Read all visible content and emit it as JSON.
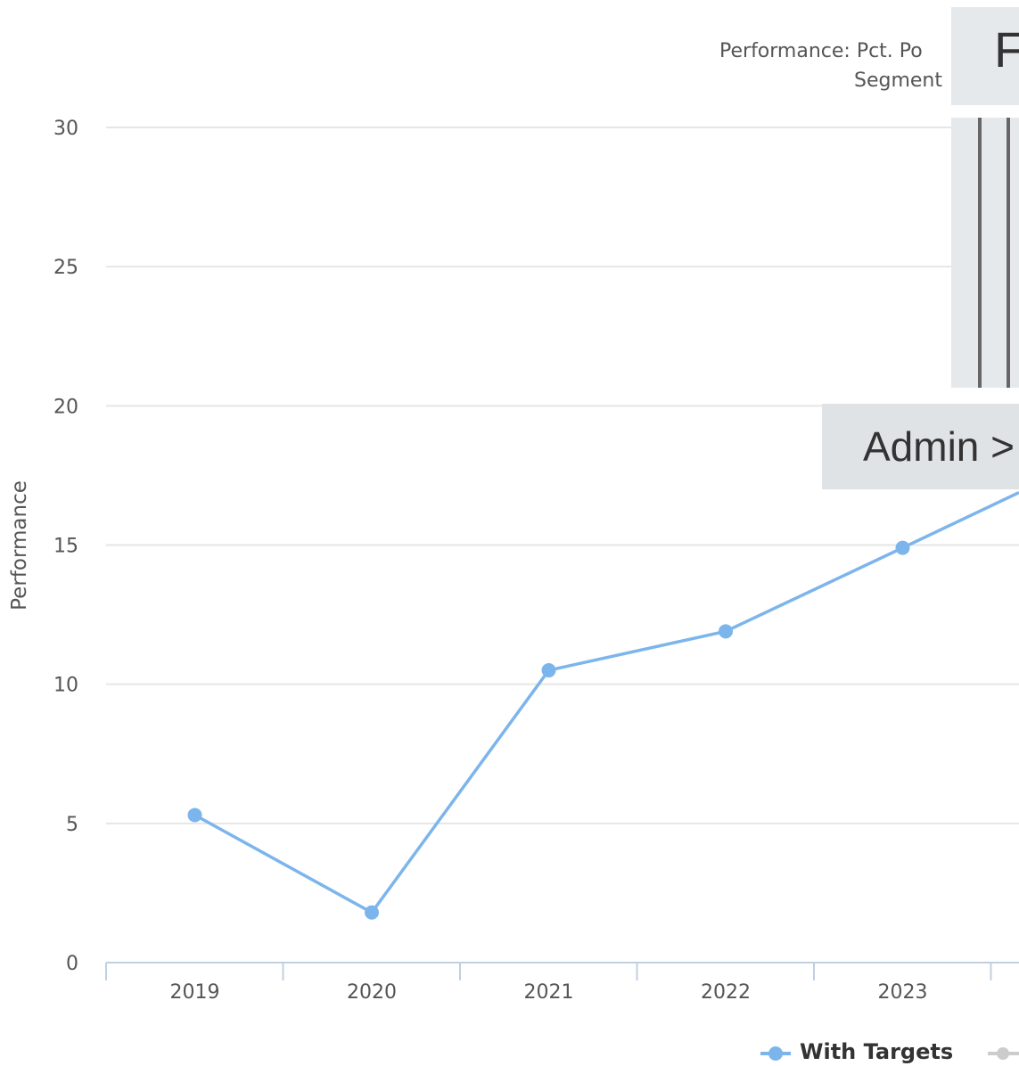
{
  "chart_data": {
    "type": "line",
    "title_lines": [
      "Performance: Pct. Po",
      "Segment"
    ],
    "ylabel": "Performance",
    "xlabel": "",
    "categories": [
      "2019",
      "2020",
      "2021",
      "2022",
      "2023"
    ],
    "ylim": [
      0,
      30
    ],
    "yticks": [
      0,
      5,
      10,
      15,
      20,
      25,
      30
    ],
    "series": [
      {
        "name": "With Targets",
        "color": "#7cb5ec",
        "values": [
          5.3,
          1.8,
          10.5,
          11.9,
          14.9
        ]
      }
    ],
    "grid": true,
    "legend": "bottom"
  },
  "overlay": {
    "panel_letter": "F",
    "breadcrumb": "Admin >"
  }
}
